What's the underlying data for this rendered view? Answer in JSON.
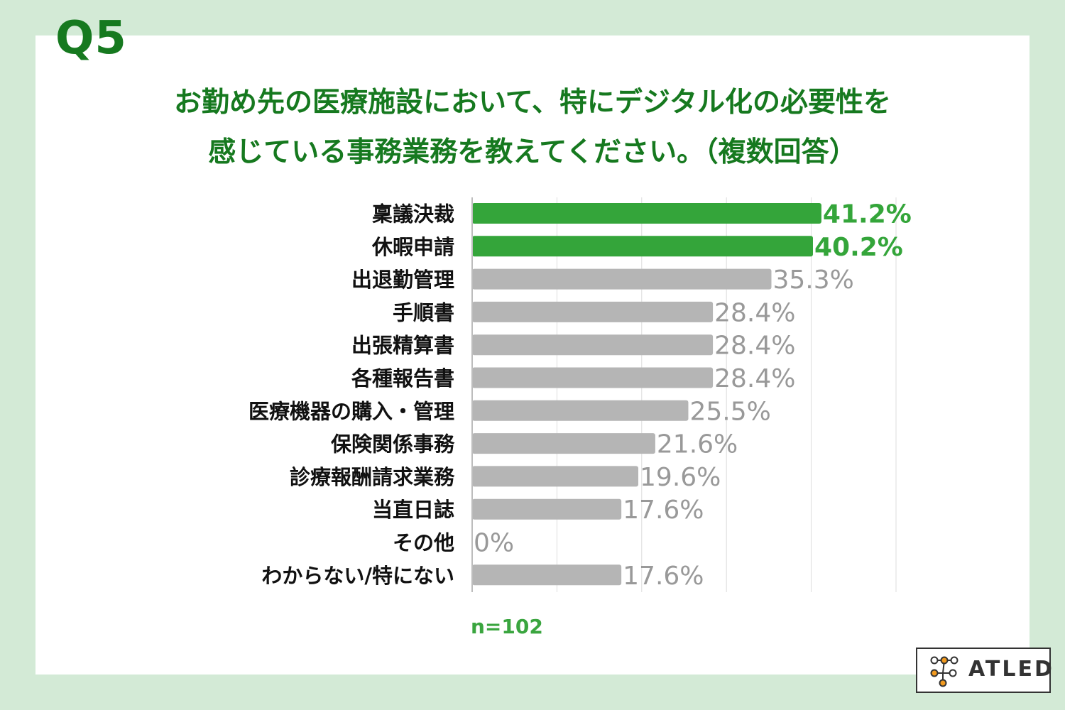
{
  "header": {
    "question_number": "Q5",
    "title_line1": "お勤め先の医療施設において、特にデジタル化の必要性を",
    "title_line2": "感じている事務業務を教えてください。（複数回答）"
  },
  "footnote": {
    "sample_size": "n=102"
  },
  "logo": {
    "text": "ATLED"
  },
  "colors": {
    "background": "#d3ead6",
    "title_green": "#16791f",
    "highlight_bar": "#34a53a",
    "normal_bar": "#b5b5b5",
    "normal_label": "#999999"
  },
  "chart_data": {
    "type": "bar",
    "orientation": "horizontal",
    "categories": [
      "稟議決裁",
      "休暇申請",
      "出退勤管理",
      "手順書",
      "出張精算書",
      "各種報告書",
      "医療機器の購入・管理",
      "保険関係事務",
      "診療報酬請求業務",
      "当直日誌",
      "その他",
      "わからない/特にない"
    ],
    "values": [
      41.2,
      40.2,
      35.3,
      28.4,
      28.4,
      28.4,
      25.5,
      21.6,
      19.6,
      17.6,
      0,
      17.6
    ],
    "value_labels": [
      "41.2%",
      "40.2%",
      "35.3%",
      "28.4%",
      "28.4%",
      "28.4%",
      "25.5%",
      "21.6%",
      "19.6%",
      "17.6%",
      "0%",
      "17.6%"
    ],
    "highlighted": [
      true,
      true,
      false,
      false,
      false,
      false,
      false,
      false,
      false,
      false,
      false,
      false
    ],
    "xlim": [
      0,
      50
    ],
    "grid": true,
    "legend": "none"
  }
}
